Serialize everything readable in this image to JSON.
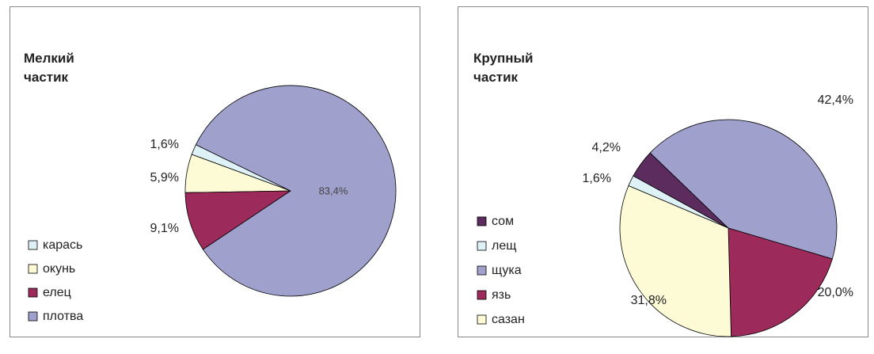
{
  "chart_data": [
    {
      "type": "pie",
      "title": "Мелкий частик",
      "categories": [
        "карась",
        "окунь",
        "елец",
        "плотва"
      ],
      "values": [
        1.6,
        5.9,
        9.1,
        83.4
      ],
      "value_labels": [
        "1,6%",
        "5,9%",
        "9,1%",
        "83,4%"
      ],
      "colors": [
        "#ddf1f6",
        "#fdfbd6",
        "#9c2a5a",
        "#a0a0cc"
      ]
    },
    {
      "type": "pie",
      "title": "Крупный частик",
      "categories": [
        "сом",
        "лещ",
        "щука",
        "язь",
        "сазан"
      ],
      "values": [
        4.2,
        1.6,
        42.4,
        20.0,
        31.8
      ],
      "value_labels": [
        "4,2%",
        "1,6%",
        "42,4%",
        "20,0%",
        "31,8%"
      ],
      "colors": [
        "#5c2c5e",
        "#ddf1f6",
        "#a0a0cc",
        "#9c2a5a",
        "#fdfbd6"
      ]
    }
  ]
}
